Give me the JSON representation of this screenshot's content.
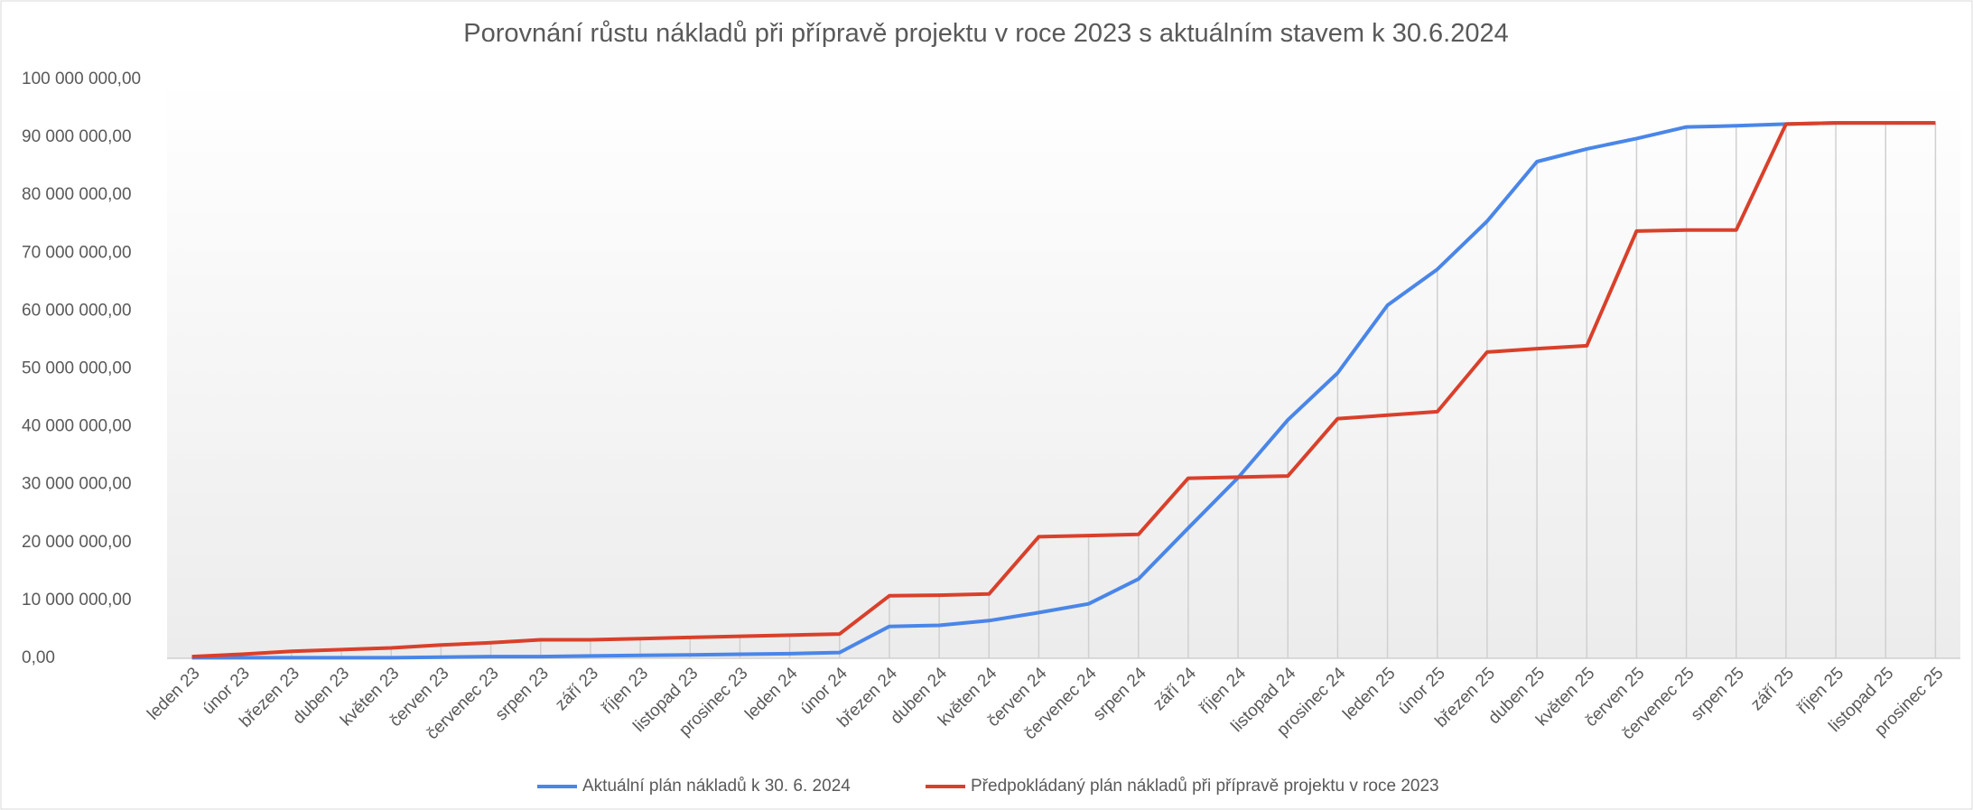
{
  "chart_data": {
    "type": "line",
    "title": "Porovnání růstu nákladů při přípravě projektu v roce 2023 s aktuálním stavem k 30.6.2024",
    "categories": [
      "leden 23",
      "únor 23",
      "březen 23",
      "duben 23",
      "květen 23",
      "červen 23",
      "červenec 23",
      "srpen 23",
      "září 23",
      "říjen 23",
      "listopad 23",
      "prosinec 23",
      "leden 24",
      "únor 24",
      "březen 24",
      "duben 24",
      "květen 24",
      "červen 24",
      "červenec 24",
      "srpen 24",
      "září 24",
      "říjen 24",
      "listopad 24",
      "prosinec 24",
      "leden 25",
      "únor 25",
      "březen 25",
      "duben 25",
      "květen 25",
      "červen 25",
      "červenec 25",
      "srpen 25",
      "září 25",
      "říjen 25",
      "listopad 25",
      "prosinec 25"
    ],
    "series": [
      {
        "name": "Aktuální plán nákladů k 30. 6. 2024",
        "color": "#4a86e8",
        "values": [
          100000,
          100000,
          100000,
          100000,
          100000,
          200000,
          300000,
          300000,
          400000,
          500000,
          600000,
          700000,
          800000,
          1000000,
          5500000,
          5700000,
          6500000,
          7900000,
          9400000,
          13700000,
          22500000,
          31200000,
          41200000,
          49300000,
          61000000,
          67200000,
          75500000,
          85800000,
          88000000,
          89800000,
          91800000,
          92000000,
          92300000,
          92500000,
          92500000,
          92500000
        ]
      },
      {
        "name": "Předpokládaný plán nákladů při přípravě projektu v roce 2023",
        "color": "#d9402b",
        "values": [
          300000,
          700000,
          1200000,
          1500000,
          1800000,
          2300000,
          2700000,
          3200000,
          3200000,
          3400000,
          3600000,
          3800000,
          4000000,
          4200000,
          10800000,
          10900000,
          11100000,
          21000000,
          21200000,
          21400000,
          31100000,
          31300000,
          31500000,
          41400000,
          42000000,
          42600000,
          52900000,
          53500000,
          54000000,
          73800000,
          74000000,
          74000000,
          92300000,
          92500000,
          92500000,
          92500000
        ]
      }
    ],
    "ylim": [
      0,
      100000000
    ],
    "yticks": [
      {
        "value": 0,
        "label": "0,00"
      },
      {
        "value": 10000000,
        "label": "10 000 000,00"
      },
      {
        "value": 20000000,
        "label": "20 000 000,00"
      },
      {
        "value": 30000000,
        "label": "30 000 000,00"
      },
      {
        "value": 40000000,
        "label": "40 000 000,00"
      },
      {
        "value": 50000000,
        "label": "50 000 000,00"
      },
      {
        "value": 60000000,
        "label": "60 000 000,00"
      },
      {
        "value": 70000000,
        "label": "70 000 000,00"
      },
      {
        "value": 80000000,
        "label": "80 000 000,00"
      },
      {
        "value": 90000000,
        "label": "90 000 000,00"
      },
      {
        "value": 100000000,
        "label": "100 000 000,00"
      }
    ],
    "legend": "bottom"
  }
}
